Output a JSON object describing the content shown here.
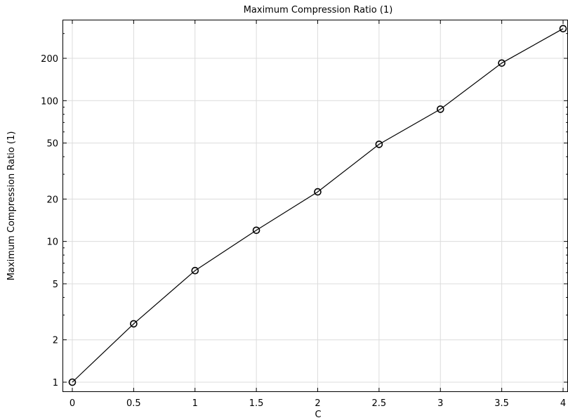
{
  "chart_data": {
    "type": "line",
    "title": "Maximum Compression Ratio (1)",
    "xlabel": "C",
    "ylabel": "Maximum Compression Ratio (1)",
    "xlim": [
      0,
      4
    ],
    "ylim": [
      0.85,
      400
    ],
    "yscale": "log",
    "grid": true,
    "x_ticks": [
      0,
      0.5,
      1,
      1.5,
      2,
      2.5,
      3,
      3.5,
      4
    ],
    "x_tick_labels": [
      "0",
      "0.5",
      "1",
      "1.5",
      "2",
      "2.5",
      "3",
      "3.5",
      "4"
    ],
    "y_ticks": [
      1,
      2,
      5,
      10,
      20,
      50,
      100,
      200
    ],
    "y_tick_labels": [
      "1",
      "2",
      "5",
      "10",
      "20",
      "50",
      "100",
      "200"
    ],
    "series": [
      {
        "x": [
          0,
          0.5,
          1,
          1.5,
          2,
          2.5,
          3,
          3.5,
          4
        ],
        "values": [
          1.0,
          2.6,
          6.2,
          12,
          22.5,
          49,
          87,
          185,
          325
        ],
        "marker": "circle",
        "color": "#000000"
      }
    ]
  }
}
